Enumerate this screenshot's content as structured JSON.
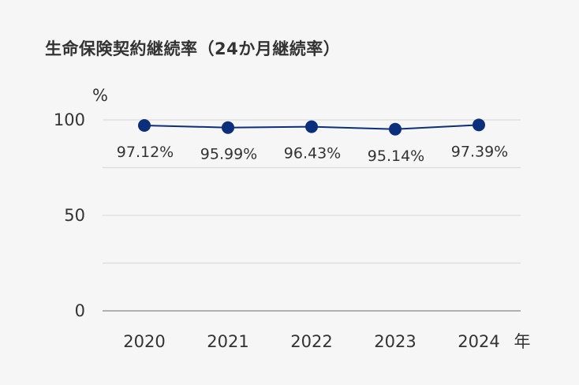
{
  "chart_data": {
    "type": "line",
    "title": "生命保険契約継続率（24か月継続率）",
    "y_unit": "%",
    "x_unit": "年",
    "categories": [
      "2020",
      "2021",
      "2022",
      "2023",
      "2024"
    ],
    "series": [
      {
        "values": [
          97.12,
          95.99,
          96.43,
          95.14,
          97.39
        ]
      }
    ],
    "data_labels": [
      "97.12%",
      "95.99%",
      "96.43%",
      "95.14%",
      "97.39%"
    ],
    "ylim": [
      0,
      100
    ],
    "yticks": [
      0,
      50,
      100
    ],
    "grid": true,
    "colors": {
      "line": "#0b2f7a",
      "grid": "#dcdcdc",
      "axis": "#999999"
    }
  }
}
